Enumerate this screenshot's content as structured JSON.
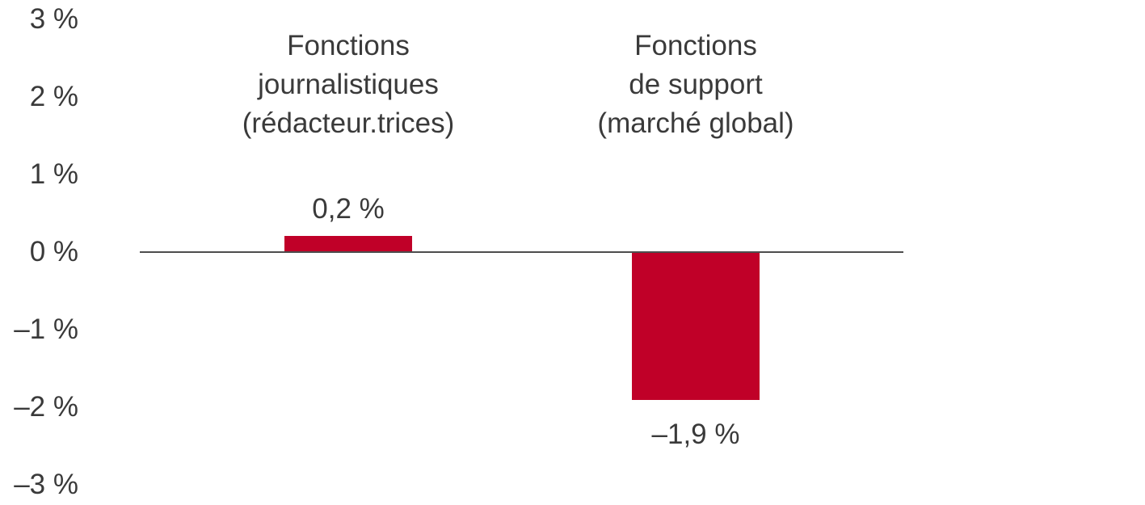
{
  "chart_data": {
    "type": "bar",
    "title": "",
    "xlabel": "",
    "ylabel": "",
    "unit": "%",
    "categories": [
      "Fonctions journalistiques (rédacteur.trices)",
      "Fonctions de support (marché global)"
    ],
    "category_labels_multiline": [
      "Fonctions\njournalistiques\n(rédacteur.trices)",
      "Fonctions\nde support\n(marché global)"
    ],
    "values": [
      0.2,
      -1.9
    ],
    "data_labels": [
      "0,2 %",
      "–1,9 %"
    ],
    "ylim": [
      -3,
      3
    ],
    "y_ticks": [
      3,
      2,
      1,
      0,
      -1,
      -2,
      -3
    ],
    "y_tick_labels": [
      "3 %",
      "2 %",
      "1 %",
      "0 %",
      "–1 %",
      "–2 %",
      "–3 %"
    ],
    "grid": false,
    "legend": false,
    "baseline_at_zero": true,
    "colors": {
      "bar": "#c00028",
      "text": "#3a3a3a",
      "axis_line": "#4d4d4d",
      "background": "#ffffff"
    }
  }
}
